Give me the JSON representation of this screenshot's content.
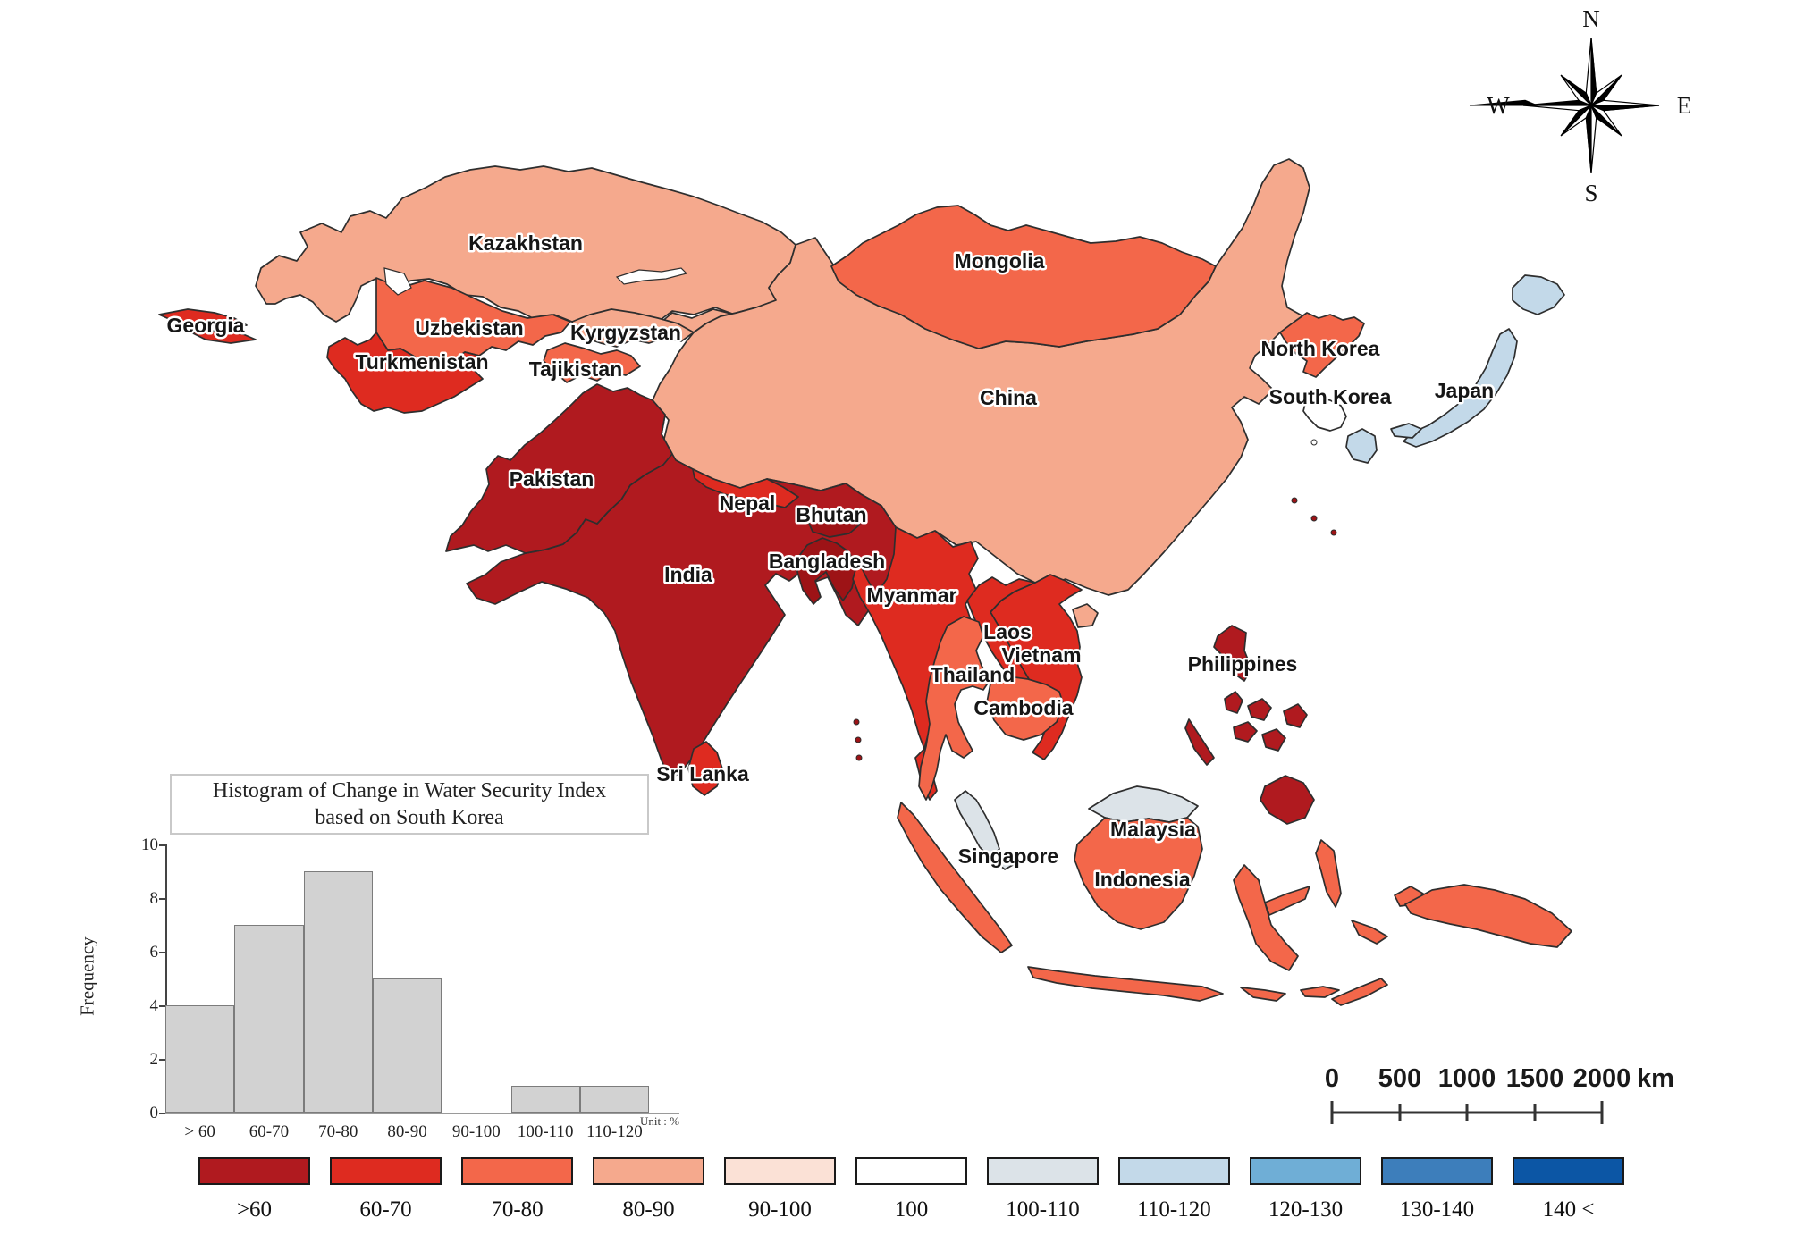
{
  "figure_title": "Histogram of Change in Water Security Index based on South Korea",
  "class_colors": {
    ">60": "#B01A1F",
    "60-70": "#DE2B20",
    "70-80": "#F3674A",
    "80-90": "#F5A98D",
    "90-100": "#FBE1D6",
    "100": "#FFFFFF",
    "100-110": "#DCE3E8",
    "110-120": "#C3D9E9",
    "120-130": "#6FAED6",
    "130-140": "#3D7EBB",
    "140 <": "#0C56A5"
  },
  "countries": {
    "georgia": {
      "name": "Georgia",
      "class": "60-70"
    },
    "kazakhstan": {
      "name": "Kazakhstan",
      "class": "80-90"
    },
    "uzbekistan": {
      "name": "Uzbekistan",
      "class": "70-80"
    },
    "turkmenistan": {
      "name": "Turkmenistan",
      "class": "60-70"
    },
    "kyrgyzstan": {
      "name": "Kyrgyzstan",
      "class": "80-90"
    },
    "tajikistan": {
      "name": "Tajikistan",
      "class": "70-80"
    },
    "mongolia": {
      "name": "Mongolia",
      "class": "70-80"
    },
    "china": {
      "name": "China",
      "class": "80-90"
    },
    "north_korea": {
      "name": "North Korea",
      "class": "70-80"
    },
    "south_korea": {
      "name": "South Korea",
      "class": "100"
    },
    "japan": {
      "name": "Japan",
      "class": "110-120"
    },
    "pakistan": {
      "name": "Pakistan",
      "class": ">60"
    },
    "india": {
      "name": "India",
      "class": ">60"
    },
    "nepal": {
      "name": "Nepal",
      "class": "60-70"
    },
    "bhutan": {
      "name": "Bhutan",
      "class": ">60",
      "fill": "#9D1316"
    },
    "bangladesh": {
      "name": "Bangladesh",
      "class": ">60",
      "fill": "#9D1316"
    },
    "myanmar": {
      "name": "Myanmar",
      "class": "60-70"
    },
    "laos": {
      "name": "Laos",
      "class": "60-70"
    },
    "vietnam": {
      "name": "Vietnam",
      "class": "60-70"
    },
    "thailand": {
      "name": "Thailand",
      "class": "70-80"
    },
    "cambodia": {
      "name": "Cambodia",
      "class": "70-80"
    },
    "sri_lanka": {
      "name": "Sri Lanka",
      "class": "60-70"
    },
    "philippines": {
      "name": "Philippines",
      "class": ">60"
    },
    "malaysia": {
      "name": "Malaysia",
      "class": "100-110"
    },
    "singapore": {
      "name": "Singapore",
      "class": "100-110"
    },
    "indonesia": {
      "name": "Indonesia",
      "class": "70-80"
    },
    "hainan": {
      "name": "",
      "class": "80-90"
    }
  },
  "chart_data": {
    "type": "bar",
    "title": "Histogram of Change in Water Security Index based on South Korea",
    "title_lines": [
      "Histogram of Change in Water Security Index",
      "based on South Korea"
    ],
    "categories": [
      "> 60",
      "60-70",
      "70-80",
      "80-90",
      "90-100",
      "100-110",
      "110-120"
    ],
    "values": [
      4,
      7,
      9,
      5,
      0,
      1,
      1
    ],
    "xlabel": "",
    "ylabel": "Frequency",
    "ylim": [
      0,
      10
    ],
    "yticks": [
      0,
      2,
      4,
      6,
      8,
      10
    ],
    "unit_note": "Unit : %",
    "bar_color": "#d2d2d2",
    "legend_position": "none",
    "grid": false
  },
  "legend": {
    "items": [
      {
        "label": ">60",
        "color": "#B01A1F"
      },
      {
        "label": "60-70",
        "color": "#DE2B20"
      },
      {
        "label": "70-80",
        "color": "#F3674A"
      },
      {
        "label": "80-90",
        "color": "#F5A98D"
      },
      {
        "label": "90-100",
        "color": "#FBE1D6"
      },
      {
        "label": "100",
        "color": "#FFFFFF"
      },
      {
        "label": "100-110",
        "color": "#DCE3E8"
      },
      {
        "label": "110-120",
        "color": "#C3D9E9"
      },
      {
        "label": "120-130",
        "color": "#6FAED6"
      },
      {
        "label": "130-140",
        "color": "#3D7EBB"
      },
      {
        "label": "140 <",
        "color": "#0C56A5"
      }
    ]
  },
  "scale_bar": {
    "ticks": [
      "0",
      "500",
      "1000",
      "1500",
      "2000"
    ],
    "unit": "km"
  },
  "compass": {
    "n": "N",
    "e": "E",
    "s": "S",
    "w": "W"
  }
}
